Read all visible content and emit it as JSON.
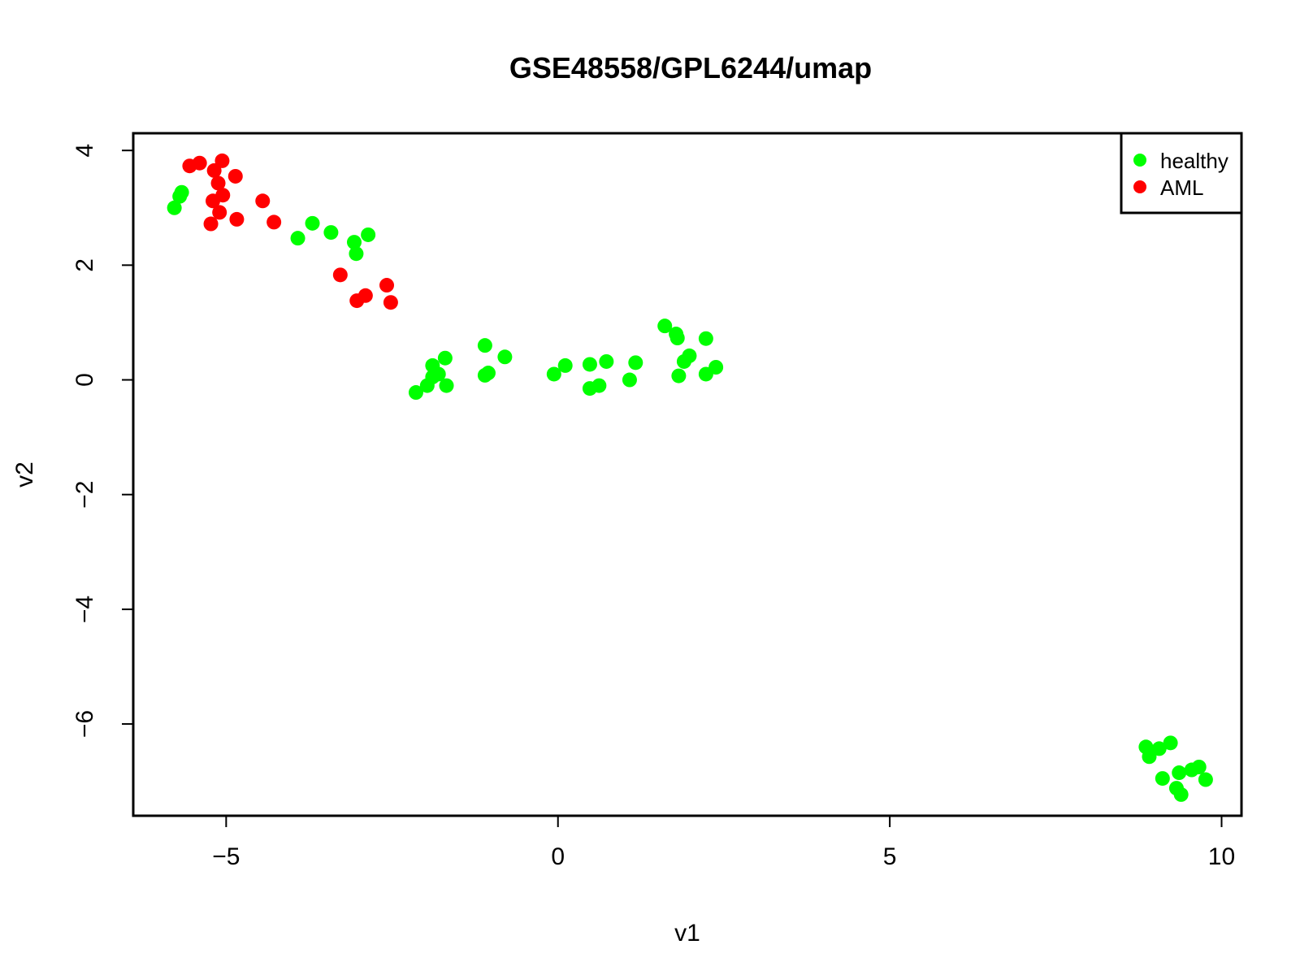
{
  "chart_data": {
    "type": "scatter",
    "title": "GSE48558/GPL6244/umap",
    "xlabel": "v1",
    "ylabel": "v2",
    "xlim": [
      -6.4,
      10.3
    ],
    "ylim": [
      -7.6,
      4.3
    ],
    "xticks": [
      -5,
      0,
      5,
      10
    ],
    "xtick_labels": [
      "−5",
      "0",
      "5",
      "10"
    ],
    "yticks": [
      -6,
      -4,
      -2,
      0,
      2,
      4
    ],
    "ytick_labels": [
      "−6",
      "−4",
      "−2",
      "0",
      "2",
      "4"
    ],
    "grid": false,
    "legend_position": "top-right",
    "series": [
      {
        "name": "healthy",
        "color": "#00ff00",
        "points": [
          [
            -5.78,
            3.0
          ],
          [
            -5.7,
            3.2
          ],
          [
            -5.67,
            3.27
          ],
          [
            -3.92,
            2.47
          ],
          [
            -3.7,
            2.73
          ],
          [
            -3.42,
            2.57
          ],
          [
            -3.07,
            2.4
          ],
          [
            -3.04,
            2.2
          ],
          [
            -2.86,
            2.53
          ],
          [
            -2.14,
            -0.22
          ],
          [
            -1.97,
            -0.1
          ],
          [
            -1.89,
            0.05
          ],
          [
            -1.89,
            0.25
          ],
          [
            -1.8,
            0.1
          ],
          [
            -1.7,
            0.38
          ],
          [
            -1.68,
            -0.1
          ],
          [
            -1.1,
            0.6
          ],
          [
            -1.1,
            0.08
          ],
          [
            -1.05,
            0.12
          ],
          [
            -0.8,
            0.4
          ],
          [
            -0.06,
            0.1
          ],
          [
            0.11,
            0.25
          ],
          [
            0.48,
            0.27
          ],
          [
            0.48,
            -0.15
          ],
          [
            0.62,
            -0.1
          ],
          [
            0.73,
            0.32
          ],
          [
            1.08,
            0.0
          ],
          [
            1.17,
            0.3
          ],
          [
            1.61,
            0.94
          ],
          [
            1.78,
            0.8
          ],
          [
            1.8,
            0.73
          ],
          [
            1.82,
            0.07
          ],
          [
            1.9,
            0.32
          ],
          [
            1.98,
            0.42
          ],
          [
            2.23,
            0.72
          ],
          [
            2.23,
            0.1
          ],
          [
            2.38,
            0.22
          ],
          [
            8.86,
            -6.4
          ],
          [
            8.91,
            -6.57
          ],
          [
            9.06,
            -6.43
          ],
          [
            9.11,
            -6.95
          ],
          [
            9.23,
            -6.33
          ],
          [
            9.32,
            -7.12
          ],
          [
            9.36,
            -6.85
          ],
          [
            9.39,
            -7.23
          ],
          [
            9.55,
            -6.8
          ],
          [
            9.66,
            -6.75
          ],
          [
            9.76,
            -6.97
          ]
        ]
      },
      {
        "name": "AML",
        "color": "#ff0000",
        "points": [
          [
            -5.55,
            3.73
          ],
          [
            -5.4,
            3.78
          ],
          [
            -5.18,
            3.65
          ],
          [
            -5.06,
            3.82
          ],
          [
            -5.12,
            3.43
          ],
          [
            -5.05,
            3.22
          ],
          [
            -5.2,
            3.12
          ],
          [
            -5.1,
            2.92
          ],
          [
            -5.23,
            2.72
          ],
          [
            -4.86,
            3.55
          ],
          [
            -4.84,
            2.8
          ],
          [
            -4.45,
            3.12
          ],
          [
            -4.28,
            2.75
          ],
          [
            -3.28,
            1.83
          ],
          [
            -3.03,
            1.38
          ],
          [
            -2.9,
            1.47
          ],
          [
            -2.58,
            1.65
          ],
          [
            -2.52,
            1.35
          ]
        ]
      }
    ]
  }
}
